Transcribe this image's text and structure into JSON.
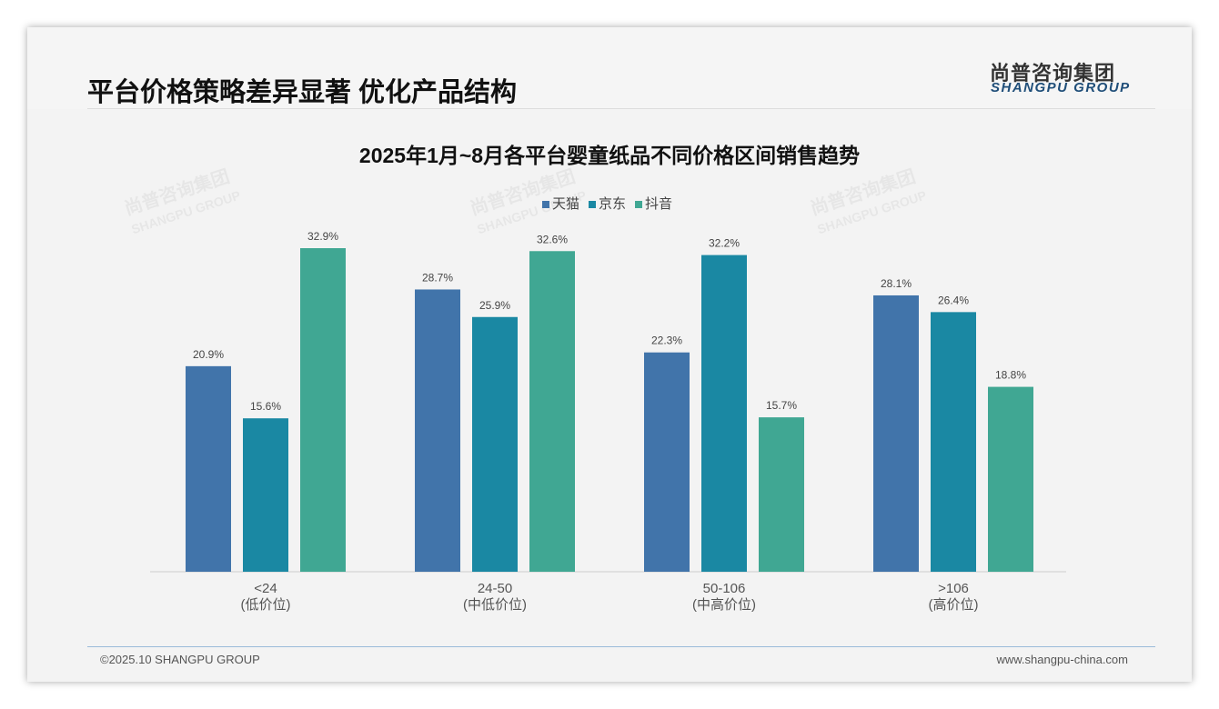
{
  "header": {
    "title": "平台价格策略差异显著 优化产品结构",
    "logo_cn": "尚普咨询集团",
    "logo_en": "SHANGPU GROUP"
  },
  "footer": {
    "copyright": "©2025.10 SHANGPU GROUP",
    "website": "www.shangpu-china.com"
  },
  "chart_data": {
    "type": "bar",
    "title": "2025年1月~8月各平台婴童纸品不同价格区间销售趋势",
    "categories": [
      "<24",
      "24-50",
      "50-106",
      ">106"
    ],
    "category_sublabels": [
      "(低价位)",
      "(中低价位)",
      "(中高价位)",
      "(高价位)"
    ],
    "series": [
      {
        "name": "天猫",
        "color": "#4174aa",
        "values": [
          20.9,
          28.7,
          22.3,
          28.1
        ]
      },
      {
        "name": "京东",
        "color": "#1a88a3",
        "values": [
          15.6,
          25.9,
          32.2,
          26.4
        ]
      },
      {
        "name": "抖音",
        "color": "#40a793",
        "values": [
          32.9,
          32.6,
          15.7,
          18.8
        ]
      }
    ],
    "unit": "%",
    "legend": "top",
    "ylim": [
      0,
      35
    ],
    "grid": false
  }
}
